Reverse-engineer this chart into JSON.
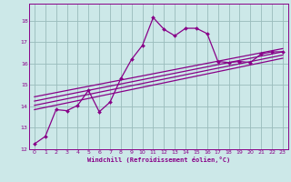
{
  "xlabel": "Windchill (Refroidissement éolien,°C)",
  "bg_color": "#cce8e8",
  "line_color": "#880088",
  "grid_color": "#99bbbb",
  "xlim": [
    -0.5,
    23.5
  ],
  "ylim": [
    12.0,
    18.8
  ],
  "xticks": [
    0,
    1,
    2,
    3,
    4,
    5,
    6,
    7,
    8,
    9,
    10,
    11,
    12,
    13,
    14,
    15,
    16,
    17,
    18,
    19,
    20,
    21,
    22,
    23
  ],
  "yticks": [
    12,
    13,
    14,
    15,
    16,
    17,
    18
  ],
  "main_x": [
    0,
    1,
    2,
    3,
    4,
    5,
    6,
    7,
    8,
    9,
    10,
    11,
    12,
    13,
    14,
    15,
    16,
    17,
    18,
    19,
    20,
    21,
    22,
    23
  ],
  "main_y": [
    12.25,
    12.6,
    13.85,
    13.8,
    14.05,
    14.75,
    13.75,
    14.2,
    15.3,
    16.2,
    16.85,
    18.15,
    17.6,
    17.3,
    17.65,
    17.65,
    17.4,
    16.1,
    16.05,
    16.1,
    16.05,
    16.45,
    16.55,
    16.55
  ],
  "straight_lines": [
    {
      "x": [
        0,
        23
      ],
      "y": [
        13.85,
        16.25
      ]
    },
    {
      "x": [
        0,
        23
      ],
      "y": [
        14.05,
        16.4
      ]
    },
    {
      "x": [
        0,
        23
      ],
      "y": [
        14.25,
        16.55
      ]
    },
    {
      "x": [
        0,
        23
      ],
      "y": [
        14.45,
        16.7
      ]
    }
  ]
}
